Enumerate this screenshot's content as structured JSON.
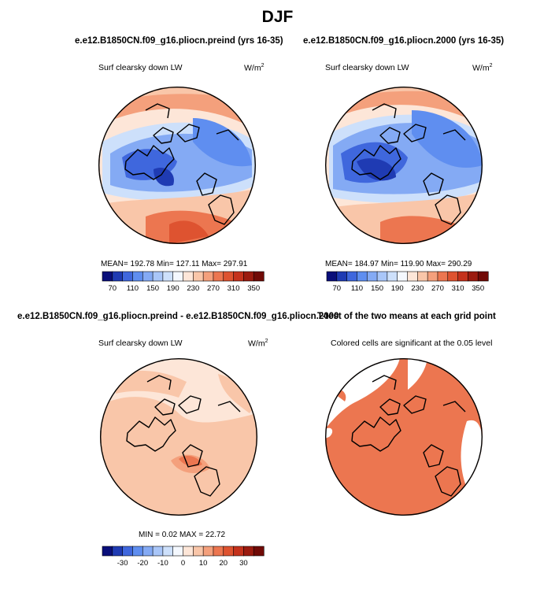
{
  "title": "DJF",
  "panels": {
    "top_left": {
      "title": "e.e12.B1850CN.f09_g16.pliocn.preind (yrs 16-35)",
      "variable": "Surf clearsky down LW",
      "units_base": "W/m",
      "units_exp": "2",
      "stats": "MEAN=  192.78    Min=  127.11    Max=  297.91"
    },
    "top_right": {
      "title": "e.e12.B1850CN.f09_g16.pliocn.2000 (yrs 16-35)",
      "variable": "Surf clearsky down LW",
      "units_base": "W/m",
      "units_exp": "2",
      "stats": "MEAN=  184.97    Min=  119.90    Max=  290.29"
    },
    "bottom_left": {
      "title": "e.e12.B1850CN.f09_g16.pliocn.preind - e.e12.B1850CN.f09_g16.pliocn.2000",
      "variable": "Surf clearsky down LW",
      "units_base": "W/m",
      "units_exp": "2",
      "stats": "MIN =    0.02   MAX =   22.72"
    },
    "bottom_right": {
      "title": "T-test of the two means at each grid point",
      "note": "Colored cells are significant at the 0.05 level"
    }
  },
  "colorbar_abs": {
    "labels": [
      "70",
      "110",
      "150",
      "190",
      "230",
      "270",
      "310",
      "350"
    ],
    "colors": [
      "#0a0f7a",
      "#1f3bb3",
      "#3f67dd",
      "#5f8ef0",
      "#84aaf4",
      "#a9c6f8",
      "#cde0fb",
      "#f4f8fe",
      "#fde6d8",
      "#f9c6a9",
      "#f4a07c",
      "#ec7650",
      "#de5330",
      "#c4321c",
      "#9b1b0f",
      "#700a06"
    ]
  },
  "colorbar_diff": {
    "labels": [
      "-30",
      "-20",
      "-10",
      "0",
      "10",
      "20",
      "30"
    ],
    "colors": [
      "#0a0f7a",
      "#1f3bb3",
      "#3f67dd",
      "#5f8ef0",
      "#84aaf4",
      "#a9c6f8",
      "#cde0fb",
      "#f4f8fe",
      "#fde6d8",
      "#f9c6a9",
      "#f4a07c",
      "#ec7650",
      "#de5330",
      "#c4321c",
      "#9b1b0f",
      "#700a06"
    ]
  },
  "chart_data": [
    {
      "type": "heatmap",
      "title": "e.e12.B1850CN.f09_g16.pliocn.preind (yrs 16-35)",
      "subtitle": "Surf clearsky down LW",
      "units": "W/m2",
      "projection": "north polar stereographic",
      "mean": 192.78,
      "min": 127.11,
      "max": 297.91,
      "colorbar_ticks": [
        70,
        110,
        150,
        190,
        230,
        270,
        310,
        350
      ]
    },
    {
      "type": "heatmap",
      "title": "e.e12.B1850CN.f09_g16.pliocn.2000 (yrs 16-35)",
      "subtitle": "Surf clearsky down LW",
      "units": "W/m2",
      "projection": "north polar stereographic",
      "mean": 184.97,
      "min": 119.9,
      "max": 290.29,
      "colorbar_ticks": [
        70,
        110,
        150,
        190,
        230,
        270,
        310,
        350
      ]
    },
    {
      "type": "heatmap",
      "title": "e.e12.B1850CN.f09_g16.pliocn.preind - e.e12.B1850CN.f09_g16.pliocn.2000",
      "subtitle": "Surf clearsky down LW",
      "units": "W/m2",
      "min": 0.02,
      "max": 22.72,
      "colorbar_ticks": [
        -30,
        -20,
        -10,
        0,
        10,
        20,
        30
      ]
    },
    {
      "type": "heatmap",
      "title": "T-test of the two means at each grid point",
      "subtitle": "Colored cells are significant at the 0.05 level"
    }
  ]
}
